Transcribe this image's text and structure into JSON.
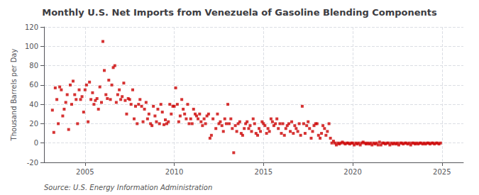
{
  "chart_data": {
    "type": "scatter",
    "title": "Monthly U.S. Net Imports from Venezuela of Gasoline Blending Components",
    "ylabel": "Thousand Barrels per Day",
    "annotation": "Source: U.S. Energy Information Administration",
    "color": "#cc0000",
    "marker": "square",
    "grid": true,
    "xlim": [
      2002.7,
      2026.2
    ],
    "xticks": [
      2005,
      2010,
      2015,
      2020,
      2025
    ],
    "ylim": [
      -20,
      120
    ],
    "yticks": [
      -20,
      0,
      20,
      40,
      60,
      80,
      100,
      120
    ],
    "x": [
      2003.17,
      2003.25,
      2003.33,
      2003.42,
      2003.5,
      2003.58,
      2003.67,
      2003.75,
      2003.83,
      2003.92,
      2004.0,
      2004.08,
      2004.17,
      2004.25,
      2004.33,
      2004.42,
      2004.5,
      2004.58,
      2004.67,
      2004.75,
      2004.83,
      2004.92,
      2005.0,
      2005.08,
      2005.17,
      2005.25,
      2005.33,
      2005.42,
      2005.5,
      2005.58,
      2005.67,
      2005.75,
      2005.83,
      2005.92,
      2006.0,
      2006.08,
      2006.17,
      2006.25,
      2006.33,
      2006.42,
      2006.5,
      2006.58,
      2006.67,
      2006.75,
      2006.83,
      2006.92,
      2007.0,
      2007.08,
      2007.17,
      2007.25,
      2007.33,
      2007.42,
      2007.5,
      2007.58,
      2007.67,
      2007.75,
      2007.83,
      2007.92,
      2008.0,
      2008.08,
      2008.17,
      2008.25,
      2008.33,
      2008.42,
      2008.5,
      2008.58,
      2008.67,
      2008.75,
      2008.83,
      2008.92,
      2009.0,
      2009.08,
      2009.17,
      2009.25,
      2009.33,
      2009.42,
      2009.5,
      2009.58,
      2009.67,
      2009.75,
      2009.83,
      2009.92,
      2010.0,
      2010.08,
      2010.17,
      2010.25,
      2010.33,
      2010.42,
      2010.5,
      2010.58,
      2010.67,
      2010.75,
      2010.83,
      2010.92,
      2011.0,
      2011.08,
      2011.17,
      2011.25,
      2011.33,
      2011.42,
      2011.5,
      2011.58,
      2011.67,
      2011.75,
      2011.83,
      2011.92,
      2012.0,
      2012.08,
      2012.17,
      2012.33,
      2012.42,
      2012.5,
      2012.58,
      2012.67,
      2012.75,
      2012.83,
      2012.92,
      2013.0,
      2013.08,
      2013.17,
      2013.25,
      2013.33,
      2013.42,
      2013.5,
      2013.58,
      2013.67,
      2013.75,
      2013.83,
      2013.92,
      2014.0,
      2014.08,
      2014.17,
      2014.25,
      2014.33,
      2014.42,
      2014.5,
      2014.58,
      2014.67,
      2014.75,
      2014.83,
      2014.92,
      2015.0,
      2015.08,
      2015.17,
      2015.25,
      2015.33,
      2015.42,
      2015.5,
      2015.58,
      2015.67,
      2015.75,
      2015.83,
      2015.92,
      2016.0,
      2016.08,
      2016.17,
      2016.25,
      2016.33,
      2016.42,
      2016.5,
      2016.58,
      2016.67,
      2016.75,
      2016.83,
      2016.92,
      2017.0,
      2017.08,
      2017.17,
      2017.25,
      2017.33,
      2017.42,
      2017.5,
      2017.58,
      2017.67,
      2017.75,
      2017.83,
      2017.92,
      2018.0,
      2018.08,
      2018.17,
      2018.25,
      2018.33,
      2018.42,
      2018.5,
      2018.58,
      2018.67,
      2018.75,
      2018.83,
      2018.92,
      2019.0,
      2019.08,
      2019.17,
      2019.25,
      2019.33,
      2019.42,
      2019.5,
      2019.58,
      2019.67,
      2019.75,
      2019.83,
      2019.92,
      2020.0,
      2020.08,
      2020.17,
      2020.25,
      2020.33,
      2020.42,
      2020.5,
      2020.58,
      2020.67,
      2020.75,
      2020.83,
      2020.92,
      2021.0,
      2021.08,
      2021.17,
      2021.25,
      2021.33,
      2021.42,
      2021.5,
      2021.58,
      2021.67,
      2021.75,
      2021.83,
      2021.92,
      2022.0,
      2022.08,
      2022.17,
      2022.25,
      2022.33,
      2022.42,
      2022.5,
      2022.58,
      2022.67,
      2022.75,
      2022.83,
      2022.92,
      2023.0,
      2023.08,
      2023.17,
      2023.25,
      2023.33,
      2023.42,
      2023.5,
      2023.58,
      2023.67,
      2023.75,
      2023.83,
      2023.92,
      2024.0,
      2024.08,
      2024.17,
      2024.25,
      2024.33,
      2024.42,
      2024.5,
      2024.58,
      2024.67,
      2024.75,
      2024.83,
      2024.92
    ],
    "values": [
      34,
      11,
      57,
      45,
      20,
      58,
      55,
      28,
      35,
      42,
      50,
      14,
      60,
      40,
      64,
      50,
      45,
      20,
      55,
      45,
      48,
      32,
      55,
      60,
      22,
      63,
      45,
      52,
      40,
      44,
      46,
      35,
      58,
      42,
      105,
      75,
      50,
      46,
      65,
      45,
      60,
      78,
      80,
      42,
      50,
      55,
      45,
      48,
      62,
      44,
      30,
      46,
      45,
      40,
      55,
      25,
      38,
      20,
      40,
      45,
      38,
      22,
      35,
      42,
      25,
      30,
      20,
      18,
      38,
      28,
      22,
      35,
      20,
      40,
      32,
      19,
      24,
      20,
      22,
      40,
      30,
      38,
      38,
      57,
      40,
      22,
      28,
      45,
      35,
      30,
      25,
      40,
      20,
      25,
      20,
      35,
      30,
      28,
      25,
      30,
      22,
      18,
      25,
      20,
      28,
      30,
      5,
      8,
      25,
      15,
      30,
      20,
      22,
      18,
      12,
      25,
      20,
      40,
      20,
      25,
      15,
      -10,
      18,
      12,
      20,
      22,
      10,
      8,
      15,
      20,
      22,
      15,
      18,
      12,
      25,
      20,
      10,
      8,
      15,
      12,
      22,
      20,
      18,
      10,
      15,
      12,
      25,
      22,
      18,
      20,
      25,
      15,
      20,
      10,
      20,
      8,
      15,
      18,
      20,
      12,
      22,
      10,
      18,
      15,
      12,
      20,
      8,
      38,
      20,
      10,
      18,
      22,
      15,
      5,
      12,
      18,
      20,
      20,
      8,
      5,
      10,
      18,
      15,
      8,
      12,
      20,
      5,
      0,
      2,
      0,
      -2,
      0,
      -1,
      0,
      1,
      0,
      -1,
      0,
      0,
      -1,
      0,
      0,
      -2,
      0,
      -1,
      0,
      -2,
      0,
      1,
      0,
      -1,
      0,
      -1,
      0,
      -2,
      0,
      -1,
      0,
      -2,
      1,
      -2,
      0,
      0,
      -1,
      0,
      0,
      -2,
      0,
      -1,
      0,
      -1,
      0,
      -2,
      0,
      0,
      -1,
      0,
      0,
      -1,
      0,
      -2,
      0,
      0,
      -1,
      0,
      -1,
      0,
      0,
      -1,
      0,
      -1,
      0,
      0,
      -1,
      0,
      0,
      -1,
      0,
      0,
      -1,
      0
    ]
  }
}
